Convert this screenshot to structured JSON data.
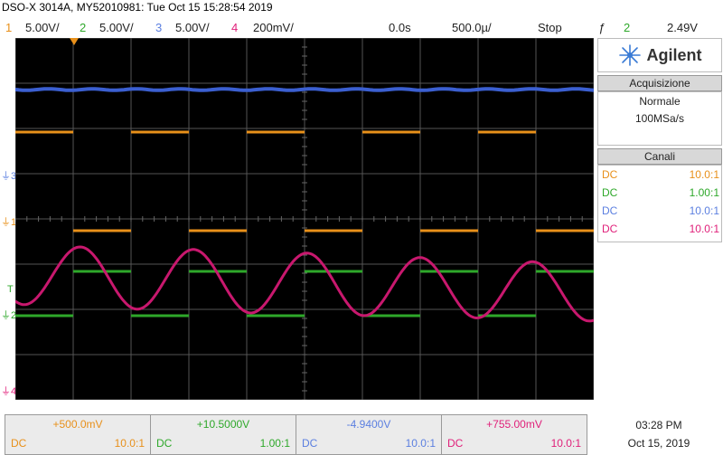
{
  "header": {
    "title": "DSO-X 3014A, MY52010981: Tue Oct 15 15:28:54 2019",
    "ch1_num": "1",
    "ch1_scale": "5.00V/",
    "ch2_num": "2",
    "ch2_scale": "5.00V/",
    "ch3_num": "3",
    "ch3_scale": "5.00V/",
    "ch4_num": "4",
    "ch4_scale": "200mV/",
    "time_delay": "0.0s",
    "time_scale": "500.0µ/",
    "run_state": "Stop",
    "trigger_glyph": "ƒ",
    "trigger_source": "2",
    "trigger_level": "2.49V"
  },
  "screen_markers": {
    "ch1": "1",
    "ch2": "2",
    "ch3": "3",
    "ch4": "4",
    "trigger": "T"
  },
  "panel": {
    "brand": "Agilent",
    "acq_title": "Acquisizione",
    "acq_mode": "Normale",
    "acq_rate": "100MSa/s",
    "channels_title": "Canali",
    "channels": [
      {
        "coupling": "DC",
        "probe": "10.0:1",
        "color": "#e8901a"
      },
      {
        "coupling": "DC",
        "probe": "1.00:1",
        "color": "#2ea82a"
      },
      {
        "coupling": "DC",
        "probe": "10.0:1",
        "color": "#5b7fe0"
      },
      {
        "coupling": "DC",
        "probe": "10.0:1",
        "color": "#e0207a"
      }
    ]
  },
  "bottom": [
    {
      "offset": "+500.0mV",
      "coupling": "DC",
      "probe": "10.0:1",
      "color": "#e8901a"
    },
    {
      "offset": "+10.5000V",
      "coupling": "DC",
      "probe": "1.00:1",
      "color": "#2ea82a"
    },
    {
      "offset": "-4.9400V",
      "coupling": "DC",
      "probe": "10.0:1",
      "color": "#5b7fe0"
    },
    {
      "offset": "+755.00mV",
      "coupling": "DC",
      "probe": "10.0:1",
      "color": "#e0207a"
    }
  ],
  "clock": {
    "time": "03:28 PM",
    "date": "Oct 15, 2019"
  },
  "colors": {
    "ch1": "#e8901a",
    "ch2": "#2ea82a",
    "ch3": "#5b7fe0",
    "ch4": "#e0207a",
    "trace_blue": "#3b5fd0",
    "trace_orange": "#e8901a",
    "trace_green": "#2ea82a",
    "trace_magenta": "#c8186e"
  }
}
